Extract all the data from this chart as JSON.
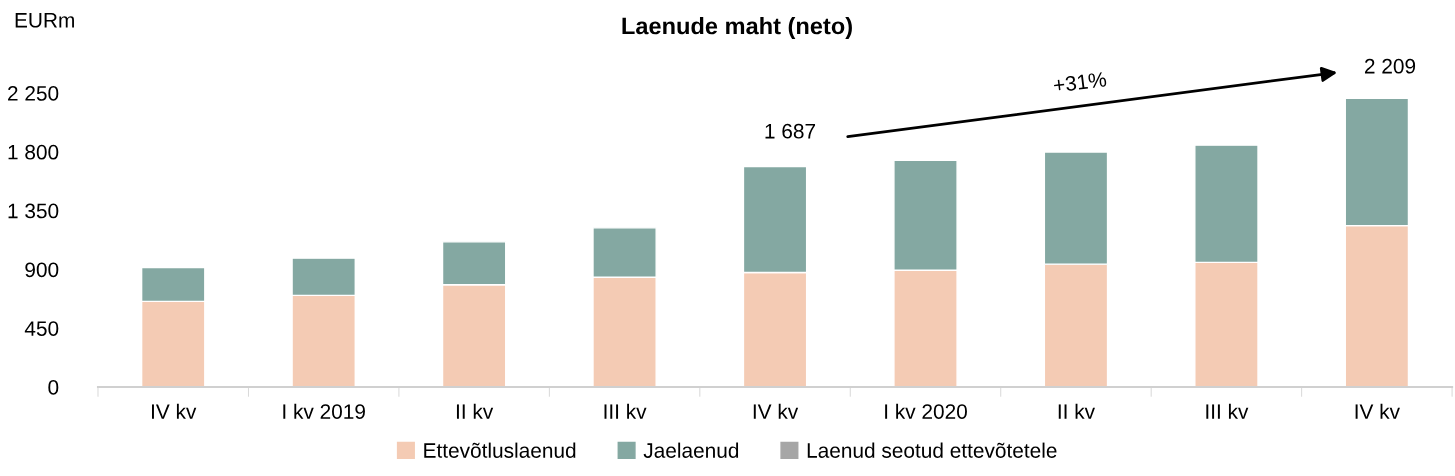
{
  "chart_data": {
    "type": "bar",
    "title": "Laenude maht (neto)",
    "ylabel": "EURm",
    "categories": [
      "IV kv",
      "I kv 2019",
      "II kv",
      "III kv",
      "IV kv",
      "I kv 2020",
      "II kv",
      "III kv",
      "IV kv"
    ],
    "stacked": true,
    "series": [
      {
        "name": "Ettevõtluslaenud",
        "color": "#f4cbb4",
        "values": [
          655,
          701,
          783,
          840,
          876,
          894,
          940,
          954,
          1235
        ]
      },
      {
        "name": "Jaelaenud",
        "color": "#84a8a2",
        "values": [
          260,
          285,
          328,
          378,
          811,
          840,
          858,
          897,
          974
        ]
      },
      {
        "name": "Laenud seotud ettevõtetele",
        "color": "#a6a6a6",
        "values": [
          null,
          null,
          null,
          null,
          null,
          null,
          null,
          null,
          null
        ]
      }
    ],
    "ylim": [
      0,
      2250
    ],
    "yticks": [
      0,
      450,
      900,
      {
        "value": 1350,
        "label": "1 350"
      },
      {
        "value": 1800,
        "label": "1 800"
      },
      {
        "value": 2250,
        "label": "2 250"
      }
    ],
    "annotations": [
      "1 687",
      "2 209",
      "+31%"
    ],
    "grid": false,
    "legend": "bottom"
  }
}
